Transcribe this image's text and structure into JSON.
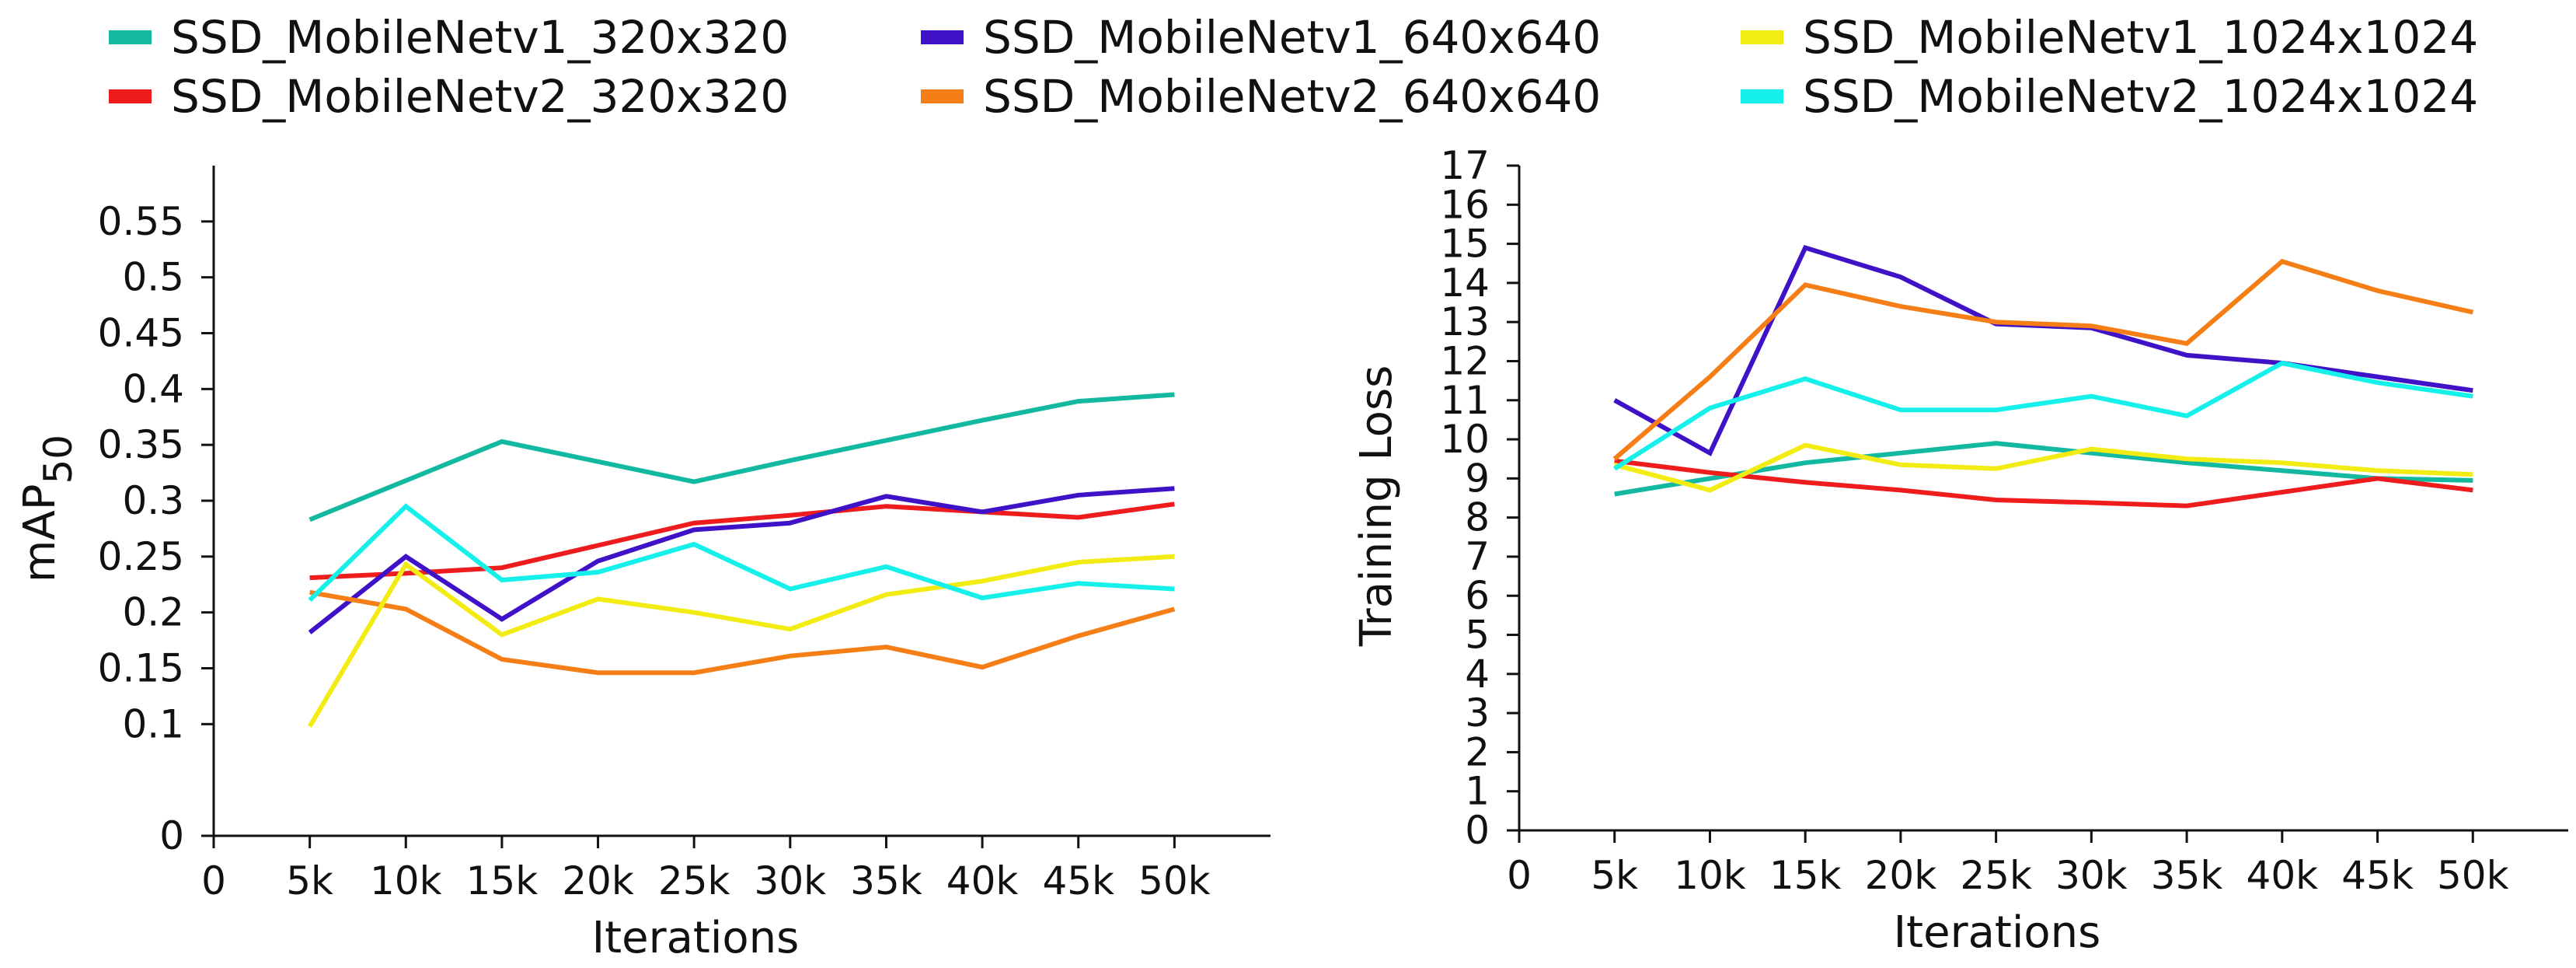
{
  "chart_data": [
    {
      "type": "line",
      "title": "",
      "xlabel": "Iterations",
      "ylabel": "mAP",
      "ylabel_sub": "50",
      "xlim": [
        0,
        55000
      ],
      "ylim": [
        0,
        0.6
      ],
      "x_ticks": [
        0,
        5000,
        10000,
        15000,
        20000,
        25000,
        30000,
        35000,
        40000,
        45000,
        50000
      ],
      "x_tick_labels": [
        "0",
        "5k",
        "10k",
        "15k",
        "20k",
        "25k",
        "30k",
        "35k",
        "40k",
        "45k",
        "50k"
      ],
      "y_ticks": [
        0,
        0.1,
        0.15,
        0.2,
        0.25,
        0.3,
        0.35,
        0.4,
        0.45,
        0.5,
        0.55
      ],
      "y_tick_labels": [
        "0",
        "0.1",
        "0.15",
        "0.2",
        "0.25",
        "0.3",
        "0.35",
        "0.4",
        "0.45",
        "0.5",
        "0.55"
      ],
      "x": [
        5000,
        10000,
        15000,
        20000,
        25000,
        30000,
        35000,
        40000,
        45000,
        50000
      ],
      "series": [
        {
          "name": "SSD_MobileNetv1_320x320",
          "color": "#13b8a0",
          "values": [
            0.283,
            0.318,
            0.353,
            0.335,
            0.317,
            0.336,
            0.354,
            0.372,
            0.389,
            0.395
          ]
        },
        {
          "name": "SSD_MobileNetv2_320x320",
          "color": "#ee1c1c",
          "values": [
            0.231,
            0.235,
            0.24,
            0.26,
            0.28,
            0.287,
            0.295,
            0.29,
            0.285,
            0.297
          ]
        },
        {
          "name": "SSD_MobileNetv1_640x640",
          "color": "#3f12c8",
          "values": [
            0.182,
            0.25,
            0.194,
            0.246,
            0.274,
            0.28,
            0.304,
            0.29,
            0.305,
            0.311
          ]
        },
        {
          "name": "SSD_MobileNetv2_640x640",
          "color": "#f57e17",
          "values": [
            0.218,
            0.203,
            0.158,
            0.146,
            0.146,
            0.161,
            0.169,
            0.151,
            0.179,
            0.203
          ]
        },
        {
          "name": "SSD_MobileNetv1_1024x1024",
          "color": "#f2ec12",
          "values": [
            0.098,
            0.243,
            0.18,
            0.212,
            0.2,
            0.185,
            0.216,
            0.228,
            0.245,
            0.25
          ]
        },
        {
          "name": "SSD_MobileNetv2_1024x1024",
          "color": "#15f1ea",
          "values": [
            0.211,
            0.295,
            0.229,
            0.236,
            0.261,
            0.221,
            0.241,
            0.213,
            0.226,
            0.221
          ]
        }
      ]
    },
    {
      "type": "line",
      "title": "",
      "xlabel": "Iterations",
      "ylabel": "Training Loss",
      "xlim": [
        0,
        55000
      ],
      "ylim": [
        0,
        17
      ],
      "x_ticks": [
        0,
        5000,
        10000,
        15000,
        20000,
        25000,
        30000,
        35000,
        40000,
        45000,
        50000
      ],
      "x_tick_labels": [
        "0",
        "5k",
        "10k",
        "15k",
        "20k",
        "25k",
        "30k",
        "35k",
        "40k",
        "45k",
        "50k"
      ],
      "y_ticks": [
        0,
        1,
        2,
        3,
        4,
        5,
        6,
        7,
        8,
        9,
        10,
        11,
        12,
        13,
        14,
        15,
        16,
        17
      ],
      "y_tick_labels": [
        "0",
        "1",
        "2",
        "3",
        "4",
        "5",
        "6",
        "7",
        "8",
        "9",
        "10",
        "11",
        "12",
        "13",
        "14",
        "15",
        "16",
        "17"
      ],
      "x": [
        5000,
        10000,
        15000,
        20000,
        25000,
        30000,
        35000,
        40000,
        45000,
        50000
      ],
      "series": [
        {
          "name": "SSD_MobileNetv1_320x320",
          "color": "#13b8a0",
          "values": [
            8.6,
            9.0,
            9.4,
            9.65,
            9.9,
            9.65,
            9.4,
            9.2,
            9.0,
            8.95
          ]
        },
        {
          "name": "SSD_MobileNetv2_320x320",
          "color": "#ee1c1c",
          "values": [
            9.45,
            9.15,
            8.9,
            8.7,
            8.45,
            8.38,
            8.3,
            8.65,
            9.0,
            8.7
          ]
        },
        {
          "name": "SSD_MobileNetv1_640x640",
          "color": "#3f12c8",
          "values": [
            11.0,
            9.65,
            14.9,
            14.15,
            12.95,
            12.85,
            12.15,
            11.95,
            11.6,
            11.25
          ]
        },
        {
          "name": "SSD_MobileNetv2_640x640",
          "color": "#f57e17",
          "values": [
            9.5,
            11.6,
            13.95,
            13.4,
            13.0,
            12.9,
            12.45,
            14.55,
            13.8,
            13.25
          ]
        },
        {
          "name": "SSD_MobileNetv1_1024x1024",
          "color": "#f2ec12",
          "values": [
            9.35,
            8.7,
            9.85,
            9.35,
            9.25,
            9.75,
            9.5,
            9.4,
            9.2,
            9.1
          ]
        },
        {
          "name": "SSD_MobileNetv2_1024x1024",
          "color": "#15f1ea",
          "values": [
            9.25,
            10.8,
            11.55,
            10.75,
            10.75,
            11.1,
            10.6,
            11.95,
            11.45,
            11.1
          ]
        }
      ]
    }
  ],
  "legend": [
    {
      "label": "SSD_MobileNetv1_320x320",
      "color": "#13b8a0"
    },
    {
      "label": "SSD_MobileNetv1_640x640",
      "color": "#3f12c8"
    },
    {
      "label": "SSD_MobileNetv1_1024x1024",
      "color": "#f2ec12"
    },
    {
      "label": "SSD_MobileNetv2_320x320",
      "color": "#ee1c1c"
    },
    {
      "label": "SSD_MobileNetv2_640x640",
      "color": "#f57e17"
    },
    {
      "label": "SSD_MobileNetv2_1024x1024",
      "color": "#15f1ea"
    }
  ]
}
